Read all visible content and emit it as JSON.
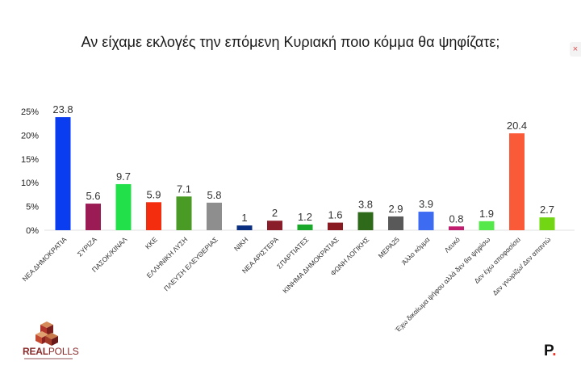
{
  "title": "Αν είχαμε εκλογές την επόμενη Κυριακή ποιο κόμμα θα ψηφίζατε;",
  "close_mark": "×",
  "brand": {
    "name_bold": "REAL",
    "name_light": "POLLS"
  },
  "corner_mark": {
    "letter": "P",
    "dot": "."
  },
  "chart_data": {
    "type": "bar",
    "title": "Αν είχαμε εκλογές την επόμενη Κυριακή ποιο κόμμα θα ψηφίζατε;",
    "xlabel": "",
    "ylabel": "",
    "ylim": [
      0,
      25
    ],
    "yticks": [
      "0%",
      "5%",
      "10%",
      "15%",
      "20%",
      "25%"
    ],
    "grid": false,
    "categories": [
      "ΝΕΑ ΔΗΜΟΚΡΑΤΙΑ",
      "ΣΥΡΙΖΑ",
      "ΠΑΣΟΚ/ΚΙΝΑΛ",
      "ΚΚΕ",
      "ΕΛΛΗΝΙΚΗ ΛΥΣΗ",
      "ΠΛΕΥΣΗ ΕΛΕΥΘΕΡΙΑΣ",
      "ΝΙΚΗ",
      "ΝΕΑ ΑΡΙΣΤΕΡΑ",
      "ΣΠΑΡΤΙΑΤΕΣ",
      "ΚΙΝΗΜΑ ΔΗΜΟΚΡΑΤΙΑΣ",
      "ΦΩΝΗ ΛΟΓΙΚΗΣ",
      "ΜΕΡΑ25",
      "Άλλο κόμμα",
      "Λευκό",
      "Έχω δικαίωμα ψήφου αλλά δεν θα ψηφίσω",
      "Δεν έχω αποφασίσει",
      "Δεν γνωρίζω/ Δεν απαντώ"
    ],
    "values": [
      23.8,
      5.6,
      9.7,
      5.9,
      7.1,
      5.8,
      1,
      2,
      1.2,
      1.6,
      3.8,
      2.9,
      3.9,
      0.8,
      1.9,
      20.4,
      2.7
    ],
    "value_labels": [
      "23.8",
      "5.6",
      "9.7",
      "5.9",
      "7.1",
      "5.8",
      "1",
      "2",
      "1.2",
      "1.6",
      "3.8",
      "2.9",
      "3.9",
      "0.8",
      "1.9",
      "20.4",
      "2.7"
    ],
    "colors": [
      "#0a3cf0",
      "#9b1b55",
      "#22e04a",
      "#f52d0f",
      "#4a9a26",
      "#8e8e8e",
      "#0b2f80",
      "#8a1d2a",
      "#1aa82a",
      "#8a1a22",
      "#2e6a19",
      "#595959",
      "#3d6cf3",
      "#c21e70",
      "#55e84a",
      "#fa5a38",
      "#72d615"
    ]
  }
}
